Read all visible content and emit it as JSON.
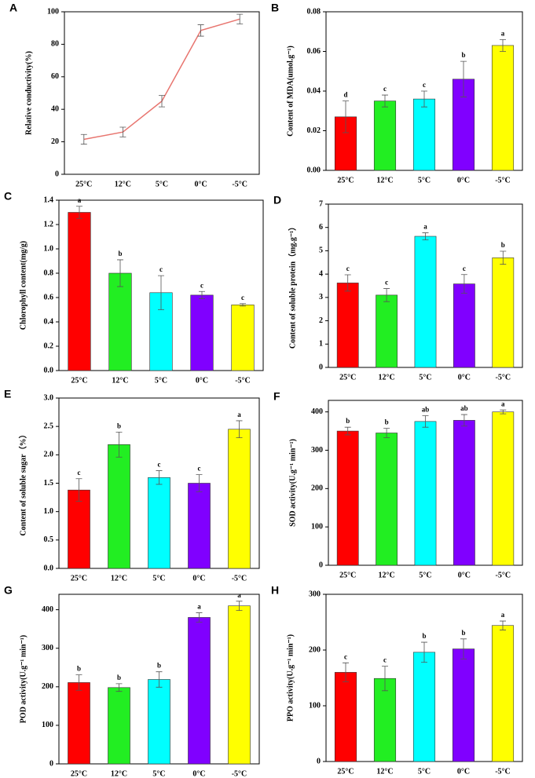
{
  "chart_data": [
    {
      "type": "line",
      "panel": "A",
      "ylabel": "Relative conductivity(%)",
      "categories": [
        "25°C",
        "12°C",
        "5°C",
        "0°C",
        "-5°C"
      ],
      "values": [
        21.5,
        26,
        45,
        88.5,
        95.5
      ],
      "errors": [
        3,
        3,
        3.5,
        3.5,
        3
      ],
      "color": "#e8756f",
      "ylim": [
        0,
        100
      ],
      "yticks": [
        0,
        20,
        40,
        60,
        80,
        100
      ]
    },
    {
      "type": "bar",
      "panel": "B",
      "ylabel": "Content of MDA(umol.g⁻¹)",
      "categories": [
        "25°C",
        "12°C",
        "5°C",
        "0°C",
        "-5°C"
      ],
      "values": [
        0.027,
        0.035,
        0.036,
        0.046,
        0.063
      ],
      "errors": [
        0.008,
        0.003,
        0.004,
        0.009,
        0.003
      ],
      "letters": [
        "d",
        "c",
        "c",
        "b",
        "a"
      ],
      "colors": [
        "#ff0000",
        "#22ee22",
        "#00ffff",
        "#8000ff",
        "#ffff00"
      ],
      "ylim": [
        0,
        0.08
      ],
      "yticks": [
        {
          "value": 0,
          "label": "0.00"
        },
        {
          "value": 0.02,
          "label": "0.02"
        },
        {
          "value": 0.04,
          "label": "0.04"
        },
        {
          "value": 0.06,
          "label": "0.06"
        },
        {
          "value": 0.08,
          "label": "0.08"
        }
      ]
    },
    {
      "type": "bar",
      "panel": "C",
      "ylabel": "Chlorophyll content(mg/g)",
      "categories": [
        "25°C",
        "12°C",
        "5°C",
        "0°C",
        "-5°C"
      ],
      "values": [
        1.3,
        0.8,
        0.64,
        0.62,
        0.54
      ],
      "errors": [
        0.05,
        0.11,
        0.14,
        0.03,
        0.01
      ],
      "letters": [
        "a",
        "b",
        "c",
        "c",
        "c"
      ],
      "colors": [
        "#ff0000",
        "#22ee22",
        "#00ffff",
        "#8000ff",
        "#ffff00"
      ],
      "ylim": [
        0,
        1.4
      ],
      "yticks": [
        {
          "value": 0,
          "label": "0.0"
        },
        0.2,
        0.4,
        0.6,
        0.8,
        {
          "value": 1,
          "label": "1.0"
        },
        1.2,
        1.4
      ]
    },
    {
      "type": "bar",
      "panel": "D",
      "ylabel": "Content of soluble protein（mg.g⁻¹）",
      "categories": [
        "25°C",
        "12°C",
        "5°C",
        "0°C",
        "-5°C"
      ],
      "values": [
        3.62,
        3.1,
        5.62,
        3.58,
        4.7
      ],
      "errors": [
        0.35,
        0.28,
        0.15,
        0.4,
        0.28
      ],
      "letters": [
        "c",
        "c",
        "a",
        "c",
        "b"
      ],
      "colors": [
        "#ff0000",
        "#22ee22",
        "#00ffff",
        "#8000ff",
        "#ffff00"
      ],
      "ylim": [
        0,
        7
      ],
      "yticks": [
        0,
        1,
        2,
        3,
        4,
        5,
        6,
        7
      ]
    },
    {
      "type": "bar",
      "panel": "E",
      "ylabel": "Content of soluble sugar（%）",
      "categories": [
        "25°C",
        "12°C",
        "5°C",
        "0°C",
        "-5°C"
      ],
      "values": [
        1.38,
        2.18,
        1.6,
        1.5,
        2.45
      ],
      "errors": [
        0.2,
        0.22,
        0.12,
        0.15,
        0.15
      ],
      "letters": [
        "c",
        "b",
        "c",
        "c",
        "a"
      ],
      "colors": [
        "#ff0000",
        "#22ee22",
        "#00ffff",
        "#8000ff",
        "#ffff00"
      ],
      "ylim": [
        0,
        3
      ],
      "yticks": [
        {
          "value": 0,
          "label": "0.0"
        },
        0.5,
        {
          "value": 1,
          "label": "1.0"
        },
        1.5,
        {
          "value": 2,
          "label": "2.0"
        },
        2.5,
        {
          "value": 3,
          "label": "3.0"
        }
      ]
    },
    {
      "type": "bar",
      "panel": "F",
      "ylabel": "SOD activity(U.g⁻¹ min⁻¹)",
      "categories": [
        "25°C",
        "12°C",
        "5°C",
        "0°C",
        "-5°C"
      ],
      "values": [
        350,
        345,
        375,
        378,
        400
      ],
      "errors": [
        10,
        12,
        15,
        15,
        5
      ],
      "letters": [
        "b",
        "b",
        "ab",
        "ab",
        "a"
      ],
      "colors": [
        "#ff0000",
        "#22ee22",
        "#00ffff",
        "#8000ff",
        "#ffff00"
      ],
      "ylim": [
        0,
        430
      ],
      "yticks": [
        0,
        100,
        200,
        300,
        400
      ]
    },
    {
      "type": "bar",
      "panel": "G",
      "ylabel": "POD activity(U.g⁻¹ min⁻¹)",
      "categories": [
        "25°C",
        "12°C",
        "5°C",
        "0°C",
        "-5°C"
      ],
      "values": [
        211,
        198,
        219,
        380,
        410
      ],
      "errors": [
        20,
        10,
        20,
        12,
        12
      ],
      "letters": [
        "b",
        "b",
        "b",
        "a",
        "a"
      ],
      "colors": [
        "#ff0000",
        "#22ee22",
        "#00ffff",
        "#8000ff",
        "#ffff00"
      ],
      "ylim": [
        0,
        440
      ],
      "yticks": [
        0,
        100,
        200,
        300,
        400
      ]
    },
    {
      "type": "bar",
      "panel": "H",
      "ylabel": "PPO activity(U.g⁻¹ min⁻¹)",
      "categories": [
        "25°C",
        "12°C",
        "5°C",
        "0°C",
        "-5°C"
      ],
      "values": [
        160,
        149,
        196,
        202,
        244
      ],
      "errors": [
        17,
        22,
        18,
        18,
        8
      ],
      "letters": [
        "c",
        "c",
        "b",
        "b",
        "a"
      ],
      "colors": [
        "#ff0000",
        "#22ee22",
        "#00ffff",
        "#8000ff",
        "#ffff00"
      ],
      "ylim": [
        0,
        300
      ],
      "yticks": [
        0,
        100,
        200,
        300
      ]
    }
  ]
}
